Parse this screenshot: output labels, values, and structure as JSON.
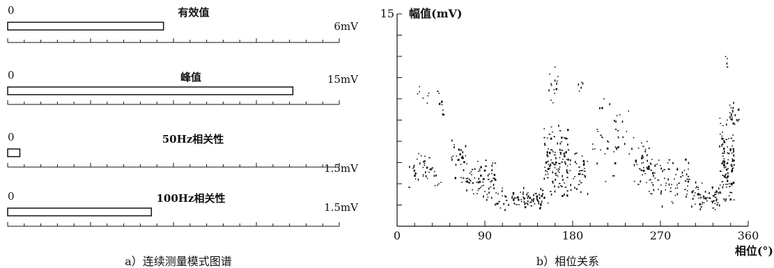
{
  "chart_data": [
    {
      "type": "bar",
      "caption": "a）连续测量模式图谱",
      "panels": [
        {
          "title": "有效值",
          "min_label": "0",
          "unit_label": "6mV",
          "value": 2.82,
          "max": 6
        },
        {
          "title": "峰值",
          "min_label": "0",
          "unit_label": "15mV",
          "value": 12.9,
          "max": 15
        },
        {
          "title": "50Hz相关性",
          "min_label": "0",
          "unit_label": "1.5mV",
          "value": 0.055,
          "max": 1.5
        },
        {
          "title": "100Hz相关性",
          "min_label": "0",
          "unit_label": "1.5mV",
          "value": 0.65,
          "max": 1.5
        }
      ]
    },
    {
      "type": "scatter",
      "caption": "b）相位关系",
      "ylabel": "幅值(mV)",
      "xlabel": "相位(°)",
      "xlim": [
        0,
        360
      ],
      "ylim": [
        0,
        15
      ],
      "x_ticks": [
        0,
        90,
        180,
        270,
        360
      ],
      "y_tick_labels": [
        {
          "value": 15,
          "label": "15"
        }
      ],
      "series": [
        {
          "description": "partial discharge pulses",
          "clusters": [
            {
              "phase": [
                8,
                45
              ],
              "amp": [
                2.4,
                5.5
              ],
              "count": 40
            },
            {
              "phase": [
                18,
                32
              ],
              "amp": [
                8.5,
                10
              ],
              "count": 7
            },
            {
              "phase": [
                40,
                48
              ],
              "amp": [
                7.5,
                10
              ],
              "count": 8
            },
            {
              "phase": [
                55,
                70
              ],
              "amp": [
                3,
                6.5
              ],
              "count": 28
            },
            {
              "phase": [
                70,
                100
              ],
              "amp": [
                1.5,
                5
              ],
              "count": 70
            },
            {
              "phase": [
                100,
                150
              ],
              "amp": [
                1,
                3
              ],
              "count": 60
            },
            {
              "phase": [
                120,
                150
              ],
              "amp": [
                1.5,
                2.5
              ],
              "count": 25
            },
            {
              "phase": [
                150,
                175
              ],
              "amp": [
                1.5,
                7.5
              ],
              "count": 120
            },
            {
              "phase": [
                155,
                165
              ],
              "amp": [
                8,
                12
              ],
              "count": 16
            },
            {
              "phase": [
                175,
                195
              ],
              "amp": [
                2,
                6
              ],
              "count": 35
            },
            {
              "phase": [
                185,
                190
              ],
              "amp": [
                9,
                10.5
              ],
              "count": 5
            },
            {
              "phase": [
                200,
                225
              ],
              "amp": [
                3,
                9.5
              ],
              "count": 30
            },
            {
              "phase": [
                225,
                240
              ],
              "amp": [
                3.5,
                9.5
              ],
              "count": 10
            },
            {
              "phase": [
                240,
                260
              ],
              "amp": [
                2,
                6.5
              ],
              "count": 45
            },
            {
              "phase": [
                260,
                300
              ],
              "amp": [
                1.3,
                5
              ],
              "count": 70
            },
            {
              "phase": [
                300,
                330
              ],
              "amp": [
                1,
                3.5
              ],
              "count": 60
            },
            {
              "phase": [
                330,
                345
              ],
              "amp": [
                1,
                8
              ],
              "count": 110
            },
            {
              "phase": [
                340,
                350
              ],
              "amp": [
                7,
                9
              ],
              "count": 20
            },
            {
              "phase": [
                336,
                340
              ],
              "amp": [
                11,
                12.5
              ],
              "count": 4
            }
          ]
        }
      ]
    }
  ]
}
